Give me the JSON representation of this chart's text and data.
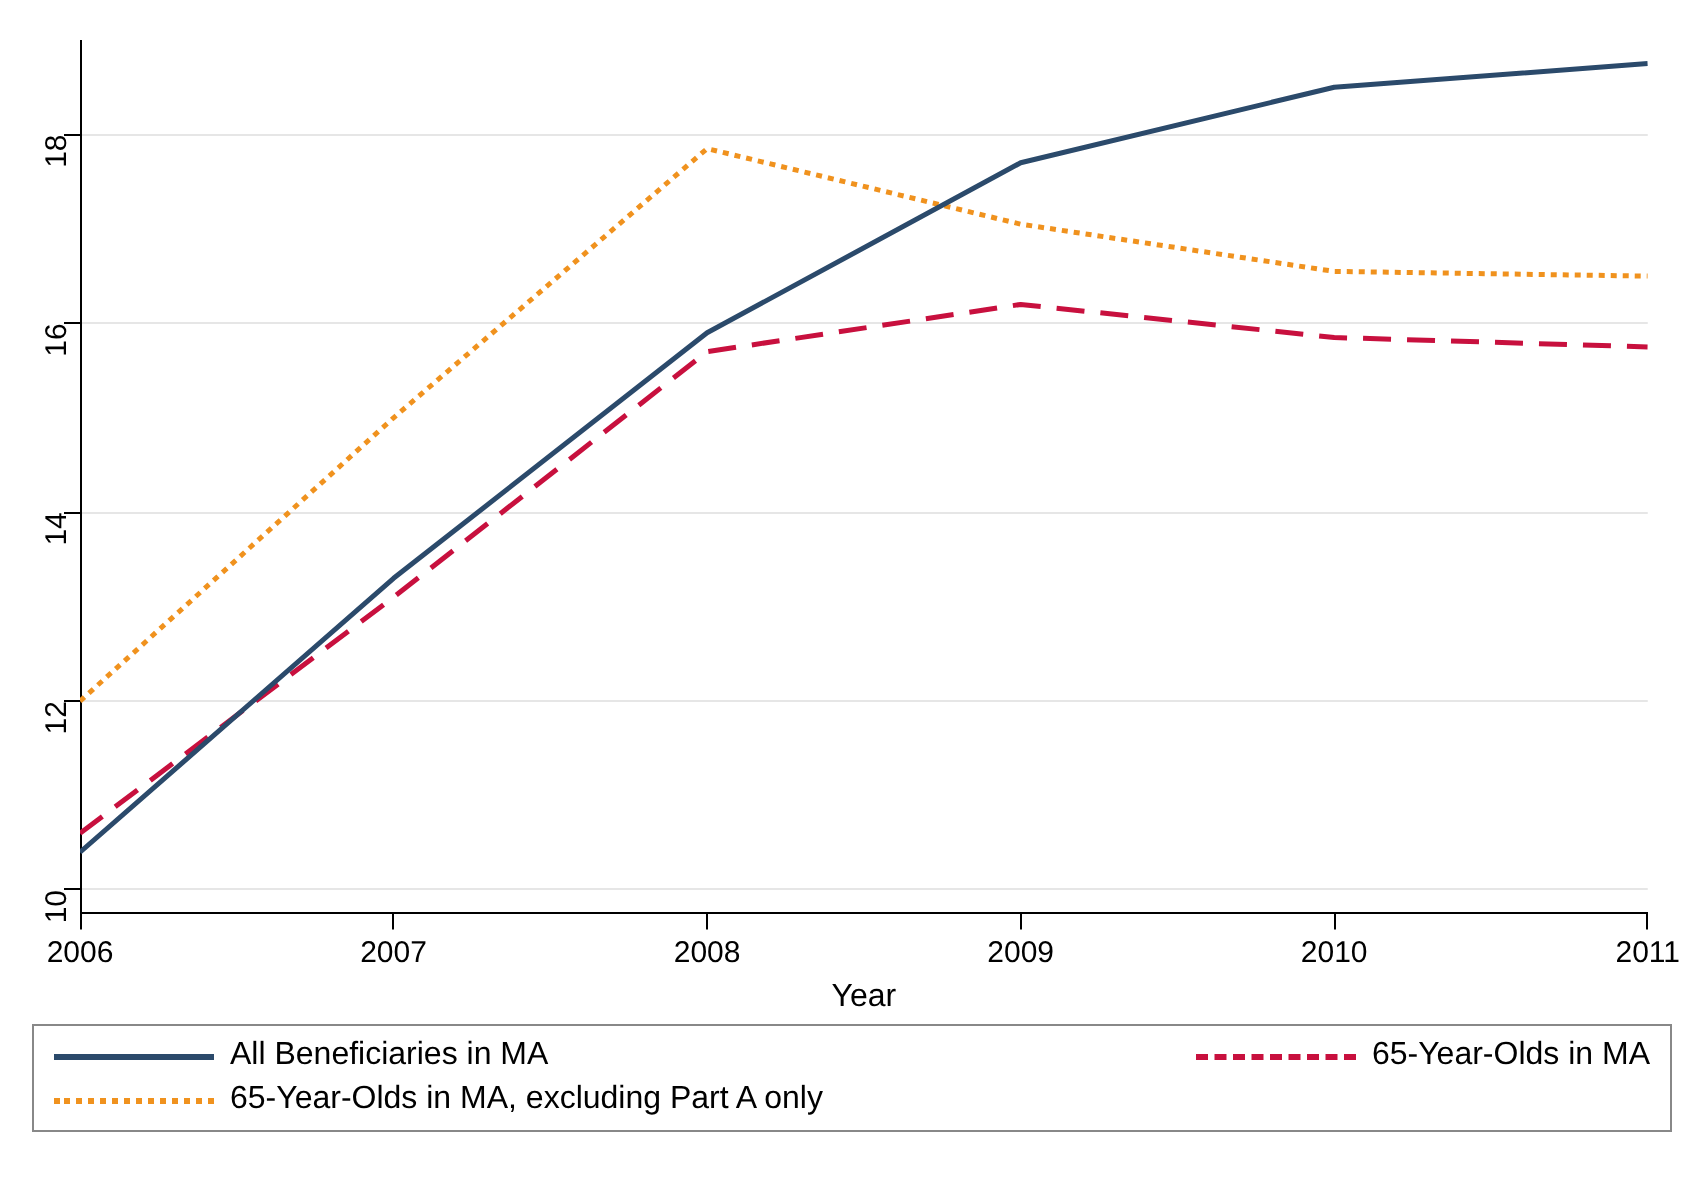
{
  "chart_data": {
    "type": "line",
    "xlabel": "Year",
    "x": [
      2006,
      2007,
      2008,
      2009,
      2010,
      2011
    ],
    "xlim": [
      2006,
      2011
    ],
    "xticks": [
      2006,
      2007,
      2008,
      2009,
      2010,
      2011
    ],
    "ylim": [
      9.75,
      19
    ],
    "yticks": [
      10,
      12,
      14,
      16,
      18
    ],
    "grid": "y",
    "legend": "bottom",
    "marker": "none",
    "series": [
      {
        "name": "All Beneficiaries in MA",
        "color": "#2b4a6b",
        "line_style": "solid",
        "values": [
          10.4,
          13.3,
          15.9,
          17.7,
          18.5,
          18.75
        ]
      },
      {
        "name": "65-Year-Olds in MA",
        "color": "#c8103e",
        "line_style": "dashed",
        "values": [
          10.6,
          13.1,
          15.7,
          16.2,
          15.85,
          15.75
        ]
      },
      {
        "name": "65-Year-Olds in MA, excluding Part A only",
        "color": "#f0921e",
        "line_style": "dotted",
        "values": [
          12.0,
          15.0,
          17.85,
          17.05,
          16.55,
          16.5
        ]
      }
    ]
  }
}
